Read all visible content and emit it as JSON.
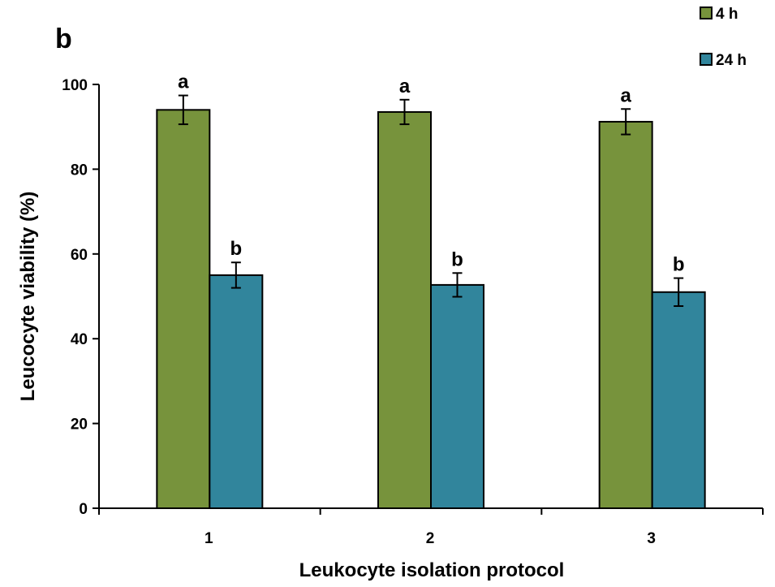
{
  "panel_label": "b",
  "legend": [
    {
      "label": "4 h",
      "color": "#77933c"
    },
    {
      "label": "24 h",
      "color": "#31859c"
    }
  ],
  "chart_data": {
    "type": "bar",
    "title": "",
    "xlabel": "Leukocyte isolation protocol",
    "ylabel": "Leucocyte viability (%)",
    "ylim": [
      0,
      100
    ],
    "yticks": [
      0,
      20,
      40,
      60,
      80,
      100
    ],
    "categories": [
      "1",
      "2",
      "3"
    ],
    "legend_position": "top-right",
    "grid": false,
    "series": [
      {
        "name": "4 h",
        "color": "#77933c",
        "values": [
          94,
          93.5,
          91.2
        ],
        "errors": [
          3.4,
          2.9,
          3.0
        ],
        "letters": [
          "a",
          "a",
          "a"
        ]
      },
      {
        "name": "24 h",
        "color": "#31859c",
        "values": [
          55,
          52.7,
          51
        ],
        "errors": [
          3.0,
          2.8,
          3.3
        ],
        "letters": [
          "b",
          "b",
          "b"
        ]
      }
    ]
  }
}
